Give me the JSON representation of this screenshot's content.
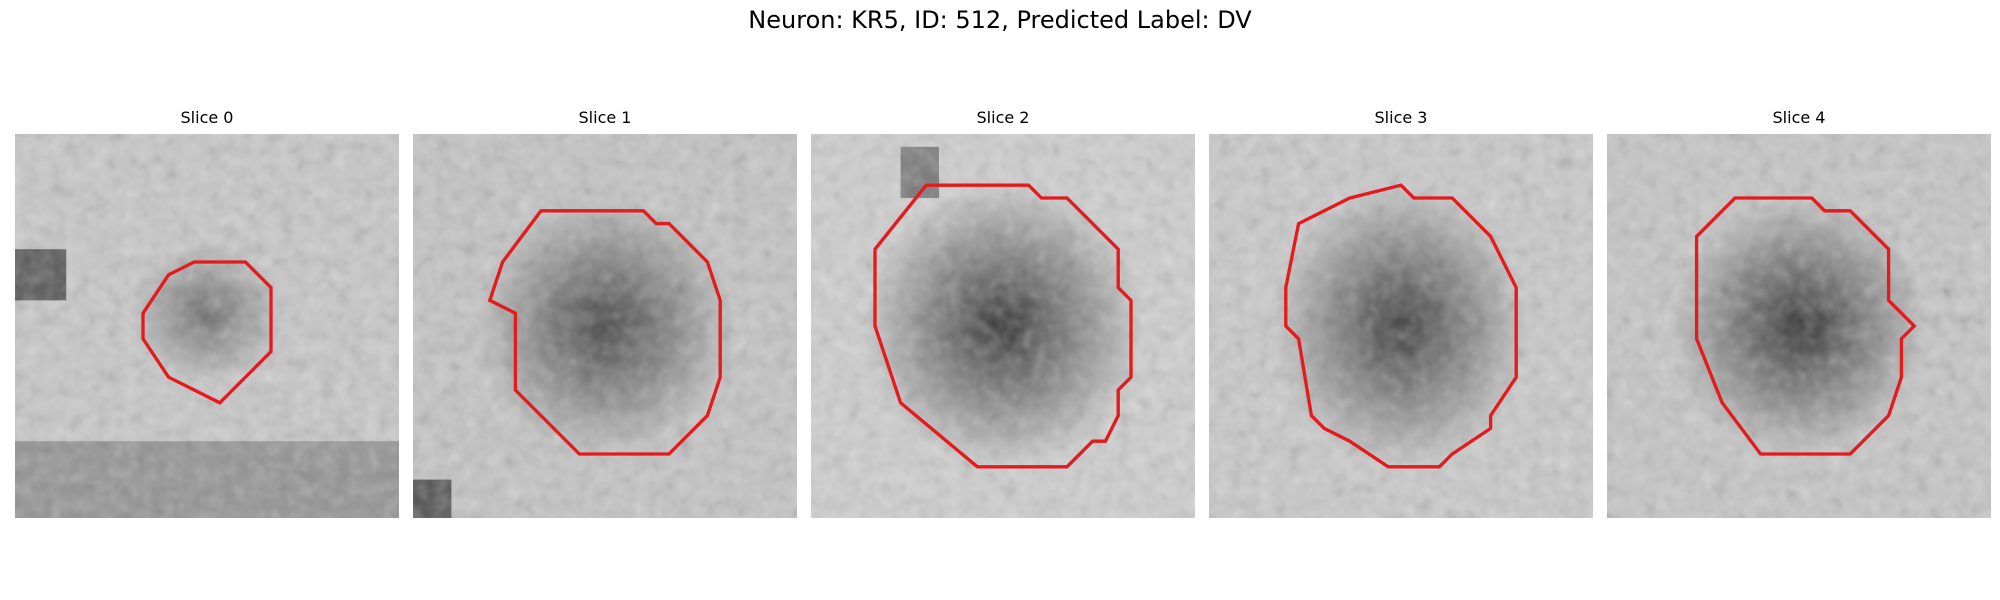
{
  "figure": {
    "title": "Neuron: KR5, ID: 512, Predicted Label: DV",
    "outline_color": "#e41a1c"
  },
  "panels": [
    {
      "title": "Slice 0"
    },
    {
      "title": "Slice 1"
    },
    {
      "title": "Slice 2"
    },
    {
      "title": "Slice 3"
    },
    {
      "title": "Slice 4"
    }
  ]
}
